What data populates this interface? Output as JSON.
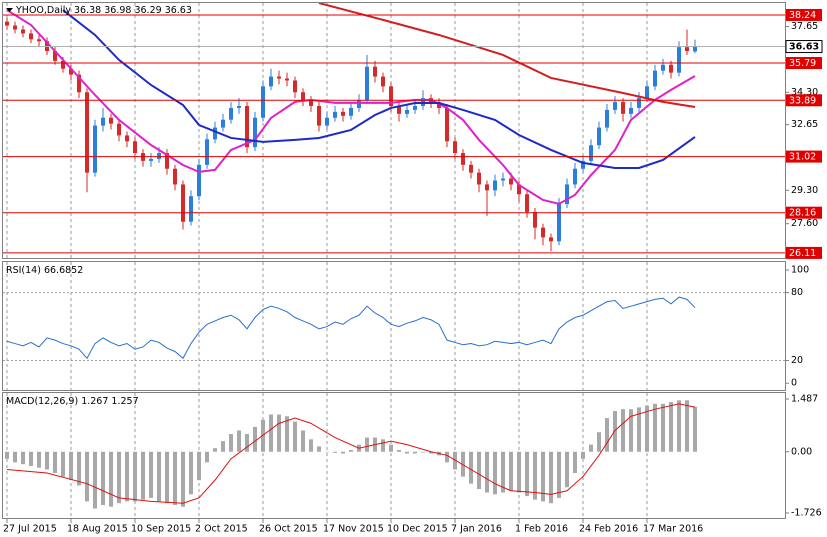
{
  "chart_data": [
    {
      "type": "candlestick",
      "title": "YHOO,Daily",
      "categories": [
        "27 Jul 2015",
        null,
        null,
        null,
        null,
        null,
        null,
        null,
        "18 Aug 2015",
        null,
        null,
        null,
        null,
        null,
        null,
        null,
        "10 Sep 2015",
        null,
        null,
        null,
        null,
        null,
        null,
        null,
        "2 Oct 2015",
        null,
        null,
        null,
        null,
        null,
        null,
        null,
        "26 Oct 2015",
        null,
        null,
        null,
        null,
        null,
        null,
        null,
        "17 Nov 2015",
        null,
        null,
        null,
        null,
        null,
        null,
        null,
        "10 Dec 2015",
        null,
        null,
        null,
        null,
        null,
        null,
        null,
        "7 Jan 2016",
        null,
        null,
        null,
        null,
        null,
        null,
        null,
        "1 Feb 2016",
        null,
        null,
        null,
        null,
        null,
        null,
        null,
        "24 Feb 2016",
        null,
        null,
        null,
        null,
        null,
        null,
        null,
        "17 Mar 2016",
        null,
        null,
        null,
        null,
        null,
        null
      ],
      "open": [
        37.9,
        37.7,
        37.5,
        37.3,
        37.0,
        36.9,
        36.4,
        35.9,
        35.5,
        35.2,
        34.3,
        30.2,
        32.6,
        33.0,
        32.7,
        32.1,
        31.8,
        31.2,
        30.8,
        30.9,
        31.2,
        30.4,
        29.6,
        27.7,
        29.0,
        30.6,
        31.9,
        32.5,
        32.9,
        33.5,
        33.6,
        31.5,
        33.0,
        34.6,
        35.1,
        35.0,
        34.9,
        34.3,
        33.9,
        33.6,
        32.6,
        33.0,
        33.3,
        33.1,
        33.5,
        33.9,
        35.6,
        35.1,
        34.6,
        33.6,
        33.2,
        33.4,
        33.6,
        34.0,
        33.8,
        33.5,
        31.8,
        31.2,
        30.6,
        30.2,
        29.6,
        29.3,
        29.8,
        29.9,
        29.6,
        29.1,
        28.2,
        27.4,
        26.9,
        26.7,
        28.6,
        29.6,
        30.4,
        30.8,
        31.6,
        32.5,
        33.4,
        33.8,
        33.2,
        33.5,
        34.0,
        34.6,
        35.4,
        35.7,
        35.3,
        36.6,
        36.38
      ],
      "high": [
        38.1,
        37.9,
        37.7,
        37.5,
        37.2,
        37.1,
        36.6,
        36.1,
        35.7,
        35.4,
        34.5,
        32.9,
        33.5,
        33.2,
        32.9,
        32.3,
        32.0,
        31.4,
        31.2,
        31.5,
        31.4,
        30.6,
        29.8,
        29.3,
        30.9,
        32.2,
        32.8,
        33.2,
        33.8,
        34.0,
        33.8,
        33.3,
        34.9,
        35.5,
        35.4,
        35.3,
        35.1,
        34.5,
        34.1,
        33.8,
        33.3,
        33.6,
        33.5,
        33.8,
        34.2,
        36.2,
        35.9,
        35.3,
        34.8,
        33.8,
        33.7,
        33.9,
        34.4,
        34.2,
        34.0,
        33.7,
        32.0,
        31.4,
        30.8,
        30.4,
        29.8,
        30.1,
        30.2,
        30.2,
        29.8,
        29.3,
        28.4,
        27.6,
        27.1,
        28.9,
        29.9,
        30.7,
        31.1,
        31.9,
        32.8,
        33.7,
        34.1,
        34.0,
        33.8,
        34.3,
        34.9,
        35.7,
        36.0,
        35.9,
        36.9,
        37.5,
        36.98
      ],
      "low": [
        37.5,
        37.3,
        37.1,
        36.8,
        36.6,
        36.2,
        35.7,
        35.3,
        34.9,
        34.0,
        29.2,
        30.0,
        32.3,
        32.4,
        31.8,
        31.5,
        30.9,
        30.5,
        30.5,
        30.7,
        30.1,
        29.3,
        27.3,
        27.5,
        28.8,
        30.4,
        31.7,
        32.3,
        32.7,
        33.2,
        31.2,
        31.3,
        32.8,
        34.4,
        34.7,
        34.6,
        34.0,
        33.6,
        33.3,
        32.3,
        32.4,
        32.8,
        32.8,
        32.9,
        33.3,
        33.7,
        34.8,
        34.3,
        33.3,
        32.8,
        33.0,
        33.2,
        33.4,
        33.5,
        33.2,
        31.5,
        30.9,
        30.3,
        29.9,
        29.2,
        28.0,
        29.0,
        29.5,
        29.3,
        28.7,
        27.9,
        26.8,
        26.5,
        26.2,
        26.5,
        28.4,
        29.4,
        30.2,
        30.6,
        31.4,
        32.3,
        33.2,
        32.8,
        33.0,
        33.3,
        33.8,
        34.4,
        35.2,
        35.0,
        35.1,
        36.2,
        36.29
      ],
      "close": [
        37.7,
        37.5,
        37.3,
        37.0,
        36.9,
        36.4,
        35.9,
        35.5,
        35.2,
        34.3,
        30.2,
        32.6,
        33.0,
        32.7,
        32.1,
        31.8,
        31.2,
        30.8,
        30.9,
        31.2,
        30.4,
        29.6,
        27.7,
        29.0,
        30.6,
        31.9,
        32.5,
        32.9,
        33.5,
        33.6,
        31.5,
        33.0,
        34.6,
        35.1,
        35.0,
        34.9,
        34.3,
        33.9,
        33.6,
        32.6,
        33.0,
        33.3,
        33.1,
        33.5,
        33.9,
        35.6,
        35.1,
        34.6,
        33.6,
        33.2,
        33.4,
        33.6,
        34.0,
        33.8,
        33.5,
        31.8,
        31.2,
        30.6,
        30.2,
        29.6,
        29.3,
        29.8,
        29.9,
        29.6,
        29.1,
        28.2,
        27.4,
        26.9,
        26.7,
        28.6,
        29.6,
        30.4,
        30.8,
        31.6,
        32.5,
        33.4,
        33.8,
        33.2,
        33.5,
        34.0,
        34.6,
        35.4,
        35.7,
        35.3,
        36.6,
        36.4,
        36.63
      ],
      "up_color": "#2a7fdc",
      "down_color": "#d42a2a",
      "overlays": [
        {
          "color": "#e020c8",
          "x": [
            0,
            3,
            7,
            11,
            14,
            18,
            22,
            24,
            26,
            28,
            31,
            33,
            36,
            38,
            41,
            43,
            46,
            48,
            51,
            53,
            55,
            57,
            59,
            62,
            64,
            67,
            69,
            71,
            73,
            76,
            78,
            81,
            83,
            86
          ],
          "values": [
            38.49,
            37.73,
            35.95,
            34.16,
            32.89,
            31.61,
            30.59,
            30.24,
            30.34,
            31.36,
            31.87,
            32.99,
            33.81,
            33.91,
            33.76,
            33.76,
            33.76,
            33.76,
            33.91,
            33.91,
            33.5,
            32.89,
            31.87,
            30.59,
            29.57,
            28.81,
            28.61,
            29.07,
            30.08,
            31.36,
            32.89,
            33.91,
            34.42,
            35.13
          ]
        },
        {
          "color": "#1c2bc8",
          "x": [
            7,
            11,
            14,
            18,
            22,
            24,
            28,
            32,
            36,
            39,
            43,
            46,
            48,
            51,
            54,
            57,
            61,
            64,
            68,
            72,
            76,
            79,
            82,
            86
          ],
          "values": [
            38.49,
            37.22,
            35.95,
            34.67,
            33.65,
            32.63,
            31.97,
            31.77,
            31.87,
            31.97,
            32.38,
            33.14,
            33.5,
            33.75,
            33.75,
            33.4,
            32.89,
            32.12,
            31.36,
            30.7,
            30.44,
            30.44,
            30.85,
            32.02
          ]
        },
        {
          "color": "#d21e1e",
          "x": [
            39,
            47,
            54,
            62,
            68,
            77,
            82,
            86
          ],
          "values": [
            38.85,
            37.99,
            37.22,
            36.2,
            35.03,
            34.26,
            33.81,
            33.55
          ]
        }
      ],
      "levels": [
        38.24,
        35.79,
        33.89,
        31.02,
        28.16,
        26.11
      ],
      "level_color": "#e00000",
      "ylim": [
        25.85,
        38.85
      ],
      "yticks": [
        37.65,
        {
          "value": 34.3,
          "label": "34.30"
        },
        32.65,
        {
          "value": 29.3,
          "label": "29.30"
        },
        {
          "value": 27.6,
          "label": "27.60"
        }
      ]
    },
    {
      "type": "line",
      "title": "RSI(14)",
      "color": "#2a6fd0",
      "values": [
        37,
        35,
        33,
        36,
        32,
        40,
        38,
        35,
        33,
        30,
        22,
        35,
        40,
        36,
        33,
        35,
        30,
        32,
        38,
        36,
        31,
        28,
        22,
        35,
        45,
        52,
        55,
        58,
        60,
        56,
        48,
        58,
        65,
        68,
        66,
        63,
        58,
        55,
        52,
        48,
        50,
        54,
        52,
        57,
        60,
        68,
        62,
        58,
        52,
        50,
        53,
        55,
        58,
        56,
        52,
        38,
        36,
        34,
        35,
        33,
        34,
        37,
        36,
        35,
        36,
        34,
        36,
        38,
        35,
        48,
        54,
        58,
        60,
        64,
        68,
        72,
        73,
        66,
        68,
        70,
        72,
        74,
        75,
        70,
        76,
        74,
        66.6852
      ],
      "levels": [
        20,
        80
      ],
      "ylim": [
        -6,
        107
      ],
      "yticks": [
        0,
        20,
        80,
        100
      ]
    },
    {
      "type": "bar",
      "title": "MACD(12,26,9)",
      "color": "#a8a8a8",
      "values": [
        -0.2,
        -0.3,
        -0.35,
        -0.4,
        -0.45,
        -0.5,
        -0.6,
        -0.7,
        -0.8,
        -0.95,
        -1.4,
        -1.6,
        -1.5,
        -1.55,
        -1.45,
        -1.4,
        -1.4,
        -1.35,
        -1.3,
        -1.4,
        -1.45,
        -1.5,
        -1.55,
        -1.2,
        -0.8,
        -0.3,
        0.1,
        0.3,
        0.5,
        0.6,
        0.5,
        0.7,
        0.9,
        1.05,
        1.05,
        1.0,
        0.85,
        0.6,
        0.35,
        0.15,
        0.0,
        -0.03,
        -0.05,
        0.05,
        0.2,
        0.4,
        0.4,
        0.35,
        0.2,
        0.05,
        -0.05,
        -0.05,
        -0.02,
        -0.05,
        -0.1,
        -0.3,
        -0.5,
        -0.7,
        -0.9,
        -1.05,
        -1.15,
        -1.2,
        -1.15,
        -1.1,
        -1.15,
        -1.25,
        -1.35,
        -1.4,
        -1.45,
        -1.3,
        -1.0,
        -0.6,
        -0.2,
        0.2,
        0.55,
        0.95,
        1.15,
        1.2,
        1.2,
        1.25,
        1.3,
        1.35,
        1.35,
        1.4,
        1.45,
        1.45,
        1.267
      ],
      "signal": {
        "color": "#e01010",
        "x": [
          0,
          5,
          10,
          14,
          18,
          22,
          24,
          26,
          28,
          31,
          34,
          36,
          38,
          41,
          44,
          46,
          48,
          50,
          53,
          55,
          58,
          61,
          63,
          66,
          68,
          70,
          72,
          74,
          76,
          78,
          81,
          84,
          86
        ],
        "values": [
          -0.5,
          -0.6,
          -0.9,
          -1.3,
          -1.4,
          -1.45,
          -1.3,
          -0.8,
          -0.2,
          0.3,
          0.8,
          0.95,
          0.8,
          0.4,
          0.1,
          0.2,
          0.3,
          0.2,
          0.0,
          -0.1,
          -0.5,
          -0.9,
          -1.1,
          -1.15,
          -1.2,
          -1.1,
          -0.7,
          -0.1,
          0.6,
          1.0,
          1.2,
          1.35,
          1.257
        ]
      },
      "ylim": [
        -1.839,
        1.656
      ],
      "yticks": [
        1.487,
        {
          "value": 0,
          "label": "0.00"
        },
        -1.726
      ]
    }
  ]
}
